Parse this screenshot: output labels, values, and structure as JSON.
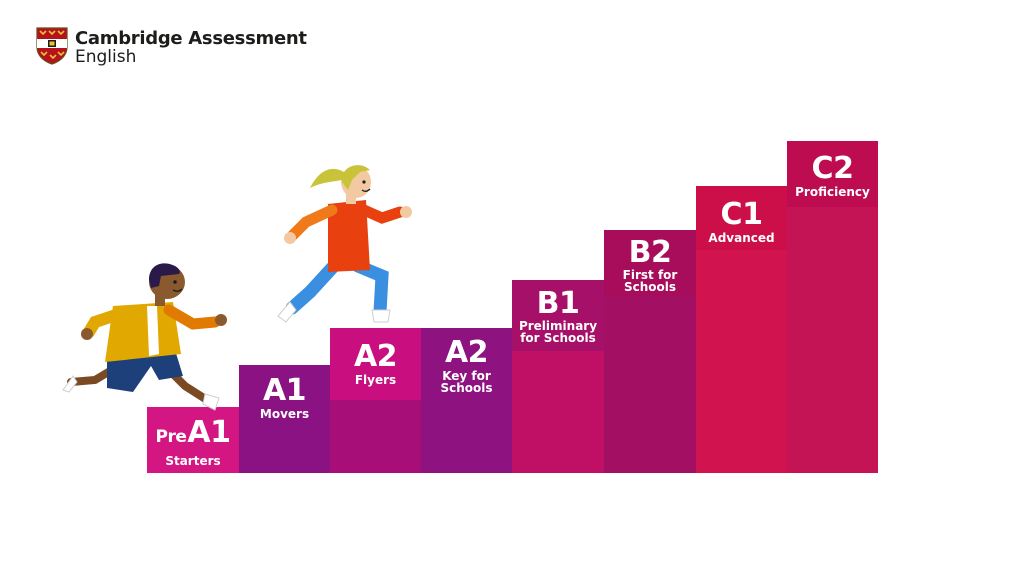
{
  "logo": {
    "line1": "Cambridge Assessment",
    "line2": "English"
  },
  "levels": [
    {
      "pre": "Pre",
      "level": "A1",
      "exam": "Starters",
      "color": "#d41682",
      "head_color": "#d41682"
    },
    {
      "pre": "",
      "level": "A1",
      "exam": "Movers",
      "color": "#8a1282",
      "head_color": "#8a1282"
    },
    {
      "pre": "",
      "level": "A2",
      "exam": "Flyers",
      "color": "#a80e78",
      "head_color": "#c90f7f"
    },
    {
      "pre": "",
      "level": "A2",
      "exam": "Key for Schools",
      "color": "#8e1380",
      "head_color": "#8e1380"
    },
    {
      "pre": "",
      "level": "B1",
      "exam": "Preliminary for Schools",
      "color": "#bf1065",
      "head_color": "#a61068"
    },
    {
      "pre": "",
      "level": "B2",
      "exam": "First for Schools",
      "color": "#a30f63",
      "head_color": "#a80d5c"
    },
    {
      "pre": "",
      "level": "C1",
      "exam": "Advanced",
      "color": "#d11350",
      "head_color": "#cc0f48"
    },
    {
      "pre": "",
      "level": "C2",
      "exam": "Proficiency",
      "color": "#c41456",
      "head_color": "#bd0c50"
    }
  ],
  "icons": {
    "crest": "cambridge-crest-icon",
    "boy": "running-boy-illustration",
    "girl": "running-girl-illustration"
  }
}
